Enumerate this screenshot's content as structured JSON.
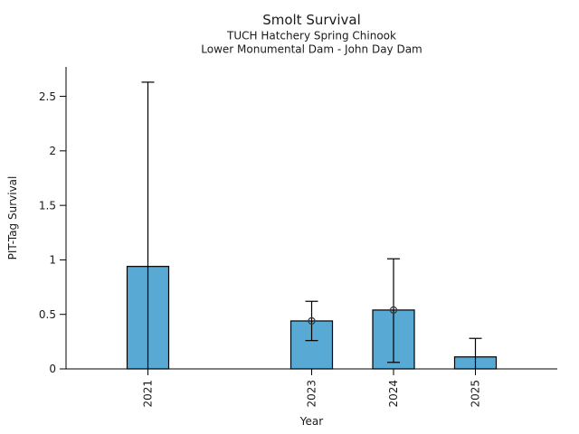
{
  "chart_data": {
    "type": "bar",
    "title": "Smolt Survival",
    "subtitle1": "TUCH Hatchery Spring Chinook",
    "subtitle2": "Lower Monumental Dam - John Day Dam",
    "xlabel": "Year",
    "ylabel": "PIT-Tag Survival",
    "ylim": [
      0,
      2.77
    ],
    "yticks": [
      0,
      0.5,
      1,
      1.5,
      2,
      2.5
    ],
    "ytick_labels": [
      "0",
      "0.5",
      "1",
      "1.5",
      "2",
      "2.5"
    ],
    "xdomain": [
      2020,
      2026
    ],
    "grid": false,
    "legend": null,
    "background_color": "#ffffff",
    "bar_color": "#58a9d4",
    "bar_edge_color": "#000000",
    "errorbar_color": "#000000",
    "marker_color": "#3a3a3a",
    "points": [
      {
        "year": "2021",
        "x": 2021,
        "value": 0.94,
        "err_low": 0.0,
        "err_high": 2.63,
        "cap_low": false,
        "cap_high": true,
        "marker": false
      },
      {
        "year": "2023",
        "x": 2023,
        "value": 0.44,
        "err_low": 0.26,
        "err_high": 0.62,
        "cap_low": true,
        "cap_high": true,
        "marker": true
      },
      {
        "year": "2024",
        "x": 2024,
        "value": 0.54,
        "err_low": 0.06,
        "err_high": 1.01,
        "cap_low": true,
        "cap_high": true,
        "marker": true
      },
      {
        "year": "2025",
        "x": 2025,
        "value": 0.11,
        "err_low": 0.0,
        "err_high": 0.28,
        "cap_low": false,
        "cap_high": true,
        "marker": false
      }
    ]
  }
}
